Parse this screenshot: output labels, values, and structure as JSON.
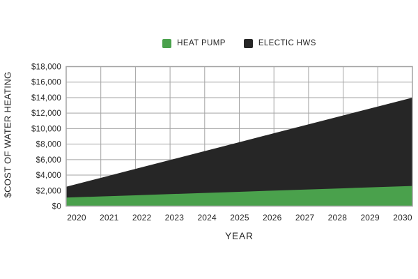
{
  "legend": {
    "items": [
      {
        "label": "HEAT PUMP",
        "color": "#4aa14c"
      },
      {
        "label": "ELECTIC HWS",
        "color": "#262626"
      }
    ]
  },
  "chart_data": {
    "type": "area",
    "title": "",
    "xlabel": "YEAR",
    "ylabel": "$COST OF WATER HEATING",
    "x": [
      "2020",
      "2021",
      "2022",
      "2023",
      "2024",
      "2025",
      "2026",
      "2027",
      "2028",
      "2029",
      "2030"
    ],
    "series": [
      {
        "name": "HEAT PUMP",
        "color": "#4aa14c",
        "values": [
          1100,
          1250,
          1400,
          1550,
          1700,
          1850,
          2000,
          2150,
          2300,
          2450,
          2600
        ]
      },
      {
        "name": "ELECTIC HWS",
        "color": "#262626",
        "values": [
          2500,
          3650,
          4800,
          5950,
          7100,
          8250,
          9400,
          10550,
          11700,
          12850,
          14000
        ]
      }
    ],
    "ylim": [
      0,
      18000
    ],
    "ytick_step": 2000,
    "ytick_labels": [
      "$0",
      "$2,000",
      "$4,000",
      "$6,000",
      "$8,000",
      "$10,000",
      "$12,000",
      "$14,000",
      "$16,000",
      "$18,000"
    ],
    "grid": true,
    "legend_position": "top-center",
    "colors": {
      "grid": "#a3a3a3",
      "text": "#262626",
      "background": "#ffffff"
    }
  }
}
